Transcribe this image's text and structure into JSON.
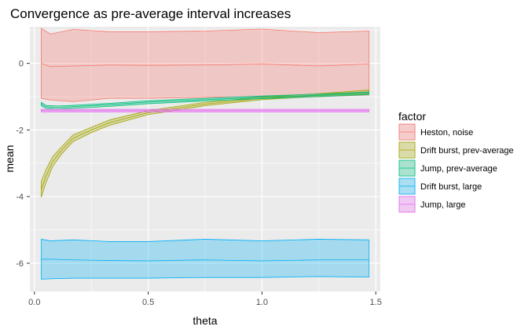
{
  "chart_data": {
    "type": "area",
    "title": "Convergence as pre-average interval increases",
    "xlabel": "theta",
    "ylabel": "mean",
    "xlim": [
      -0.02,
      1.52
    ],
    "ylim": [
      -6.85,
      1.1
    ],
    "xticks": [
      0.0,
      0.5,
      1.0,
      1.5
    ],
    "xtick_labels": [
      "0.0",
      "0.5",
      "1.0",
      "1.5"
    ],
    "yticks": [
      -6,
      -4,
      -2,
      0
    ],
    "ytick_labels": [
      "-6",
      "-4",
      "-2",
      "0"
    ],
    "grid": true,
    "legend": {
      "title": "factor",
      "position": "right"
    },
    "series": [
      {
        "name": "Heston, noise",
        "fill": "#F8766D",
        "x": [
          0.03,
          0.07,
          0.17,
          0.33,
          0.5,
          0.75,
          1.0,
          1.25,
          1.47
        ],
        "mean": [
          0.0,
          -0.1,
          -0.08,
          -0.05,
          -0.06,
          -0.05,
          -0.02,
          -0.08,
          -0.02
        ],
        "upper": [
          1.05,
          0.88,
          1.02,
          0.95,
          0.95,
          0.97,
          1.03,
          0.92,
          0.97
        ],
        "lower": [
          -1.05,
          -1.1,
          -1.15,
          -1.05,
          -1.05,
          -1.02,
          -1.0,
          -1.0,
          -0.95
        ]
      },
      {
        "name": "Drift burst, prev-average",
        "fill": "#A3A500",
        "x": [
          0.03,
          0.05,
          0.08,
          0.12,
          0.17,
          0.25,
          0.33,
          0.5,
          0.75,
          1.0,
          1.25,
          1.47
        ],
        "mean": [
          -3.8,
          -3.4,
          -2.95,
          -2.6,
          -2.25,
          -2.0,
          -1.78,
          -1.48,
          -1.22,
          -1.05,
          -0.95,
          -0.87
        ],
        "upper": [
          -3.55,
          -3.2,
          -2.8,
          -2.5,
          -2.15,
          -1.92,
          -1.7,
          -1.42,
          -1.17,
          -1.01,
          -0.91,
          -0.8
        ],
        "lower": [
          -4.02,
          -3.6,
          -3.1,
          -2.72,
          -2.35,
          -2.08,
          -1.86,
          -1.54,
          -1.27,
          -1.09,
          -0.99,
          -0.93
        ]
      },
      {
        "name": "Jump, prev-average",
        "fill": "#00BF7D",
        "x": [
          0.03,
          0.05,
          0.1,
          0.17,
          0.33,
          0.5,
          0.75,
          1.0,
          1.25,
          1.47
        ],
        "mean": [
          -1.22,
          -1.3,
          -1.33,
          -1.3,
          -1.24,
          -1.16,
          -1.09,
          -1.02,
          -0.96,
          -0.9
        ],
        "upper": [
          -1.17,
          -1.26,
          -1.28,
          -1.26,
          -1.2,
          -1.12,
          -1.05,
          -0.98,
          -0.92,
          -0.86
        ],
        "lower": [
          -1.27,
          -1.35,
          -1.38,
          -1.35,
          -1.29,
          -1.21,
          -1.13,
          -1.06,
          -1.0,
          -0.94
        ]
      },
      {
        "name": "Drift burst, large",
        "fill": "#00B0F6",
        "x": [
          0.03,
          0.07,
          0.17,
          0.33,
          0.5,
          0.75,
          1.0,
          1.25,
          1.47
        ],
        "mean": [
          -5.88,
          -5.88,
          -5.9,
          -5.92,
          -5.93,
          -5.9,
          -5.93,
          -5.9,
          -5.9
        ],
        "upper": [
          -5.28,
          -5.33,
          -5.3,
          -5.35,
          -5.35,
          -5.28,
          -5.33,
          -5.28,
          -5.3
        ],
        "lower": [
          -6.48,
          -6.47,
          -6.45,
          -6.45,
          -6.45,
          -6.43,
          -6.43,
          -6.4,
          -6.42
        ]
      },
      {
        "name": "Jump, large",
        "fill": "#E76BF3",
        "x": [
          0.03,
          0.17,
          0.33,
          0.5,
          0.75,
          1.0,
          1.25,
          1.47
        ],
        "mean": [
          -1.42,
          -1.42,
          -1.42,
          -1.42,
          -1.42,
          -1.42,
          -1.42,
          -1.42
        ],
        "upper": [
          -1.38,
          -1.38,
          -1.38,
          -1.38,
          -1.38,
          -1.38,
          -1.38,
          -1.38
        ],
        "lower": [
          -1.46,
          -1.46,
          -1.46,
          -1.46,
          -1.46,
          -1.46,
          -1.46,
          -1.46
        ]
      }
    ]
  }
}
